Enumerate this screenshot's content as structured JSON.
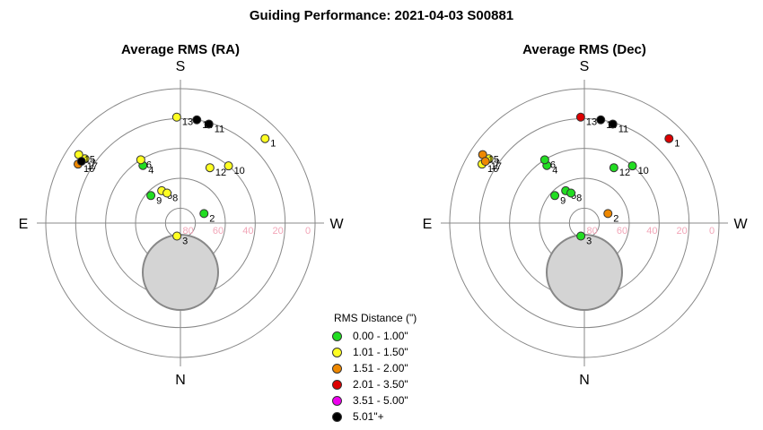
{
  "title": "Guiding Performance: 2021-04-03 S00881",
  "chart_data": [
    {
      "type": "scatter",
      "subtitle": "Average RMS (RA)",
      "directions": {
        "top": "S",
        "bottom": "N",
        "left": "E",
        "right": "W"
      },
      "ring_labels": [
        "80",
        "60",
        "40",
        "20",
        "0"
      ],
      "points": [
        {
          "label": "1",
          "az": 135,
          "alt": 10,
          "bin": 1
        },
        {
          "label": "2",
          "az": 112,
          "alt": 73,
          "bin": 0
        },
        {
          "label": "3",
          "az": 345,
          "alt": 81,
          "bin": 1
        },
        {
          "label": "4",
          "az": 213,
          "alt": 44,
          "bin": 0
        },
        {
          "label": "5",
          "az": 210,
          "alt": 65,
          "bin": 1
        },
        {
          "label": "6",
          "az": 212,
          "alt": 40,
          "bin": 1
        },
        {
          "label": "7",
          "az": 236,
          "alt": 13,
          "bin": 1
        },
        {
          "label": "8",
          "az": 204,
          "alt": 68,
          "bin": 1
        },
        {
          "label": "9",
          "az": 227,
          "alt": 63,
          "bin": 0
        },
        {
          "label": "10",
          "az": 140,
          "alt": 40,
          "bin": 1
        },
        {
          "label": "11",
          "az": 164,
          "alt": 21,
          "bin": 5
        },
        {
          "label": "12",
          "az": 152,
          "alt": 48,
          "bin": 1
        },
        {
          "label": "13",
          "az": 182,
          "alt": 19,
          "bin": 1
        },
        {
          "label": "14",
          "az": 171,
          "alt": 20,
          "bin": 5
        },
        {
          "label": "15",
          "az": 236,
          "alt": 8,
          "bin": 1
        },
        {
          "label": "16",
          "az": 240,
          "alt": 11,
          "bin": 2
        },
        {
          "label": "17",
          "az": 238,
          "alt": 12,
          "bin": 5
        }
      ]
    },
    {
      "type": "scatter",
      "subtitle": "Average RMS (Dec)",
      "directions": {
        "top": "S",
        "bottom": "N",
        "left": "E",
        "right": "W"
      },
      "ring_labels": [
        "80",
        "60",
        "40",
        "20",
        "0"
      ],
      "points": [
        {
          "label": "1",
          "az": 135,
          "alt": 10,
          "bin": 3
        },
        {
          "label": "2",
          "az": 112,
          "alt": 73,
          "bin": 2
        },
        {
          "label": "3",
          "az": 345,
          "alt": 81,
          "bin": 0
        },
        {
          "label": "4",
          "az": 213,
          "alt": 44,
          "bin": 0
        },
        {
          "label": "5",
          "az": 210,
          "alt": 65,
          "bin": 0
        },
        {
          "label": "6",
          "az": 212,
          "alt": 40,
          "bin": 0
        },
        {
          "label": "7",
          "az": 236,
          "alt": 13,
          "bin": 1
        },
        {
          "label": "8",
          "az": 204,
          "alt": 68,
          "bin": 0
        },
        {
          "label": "9",
          "az": 227,
          "alt": 63,
          "bin": 0
        },
        {
          "label": "10",
          "az": 140,
          "alt": 40,
          "bin": 0
        },
        {
          "label": "11",
          "az": 164,
          "alt": 21,
          "bin": 5
        },
        {
          "label": "12",
          "az": 152,
          "alt": 48,
          "bin": 0
        },
        {
          "label": "13",
          "az": 182,
          "alt": 19,
          "bin": 3
        },
        {
          "label": "14",
          "az": 171,
          "alt": 20,
          "bin": 5
        },
        {
          "label": "15",
          "az": 236,
          "alt": 8,
          "bin": 2
        },
        {
          "label": "16",
          "az": 240,
          "alt": 11,
          "bin": 1
        },
        {
          "label": "17",
          "az": 238,
          "alt": 12,
          "bin": 2
        }
      ]
    }
  ],
  "legend": {
    "title": "RMS Distance (\")",
    "items": [
      {
        "label": "0.00 - 1.00\"",
        "color": "#22dd22"
      },
      {
        "label": "1.01 - 1.50\"",
        "color": "#ffff22"
      },
      {
        "label": "1.51 - 2.00\"",
        "color": "#ee8800"
      },
      {
        "label": "2.01 - 3.50\"",
        "color": "#dd0000"
      },
      {
        "label": "3.51 - 5.00\"",
        "color": "#ee00ee"
      },
      {
        "label": "5.01\"+",
        "color": "#000000"
      }
    ]
  }
}
